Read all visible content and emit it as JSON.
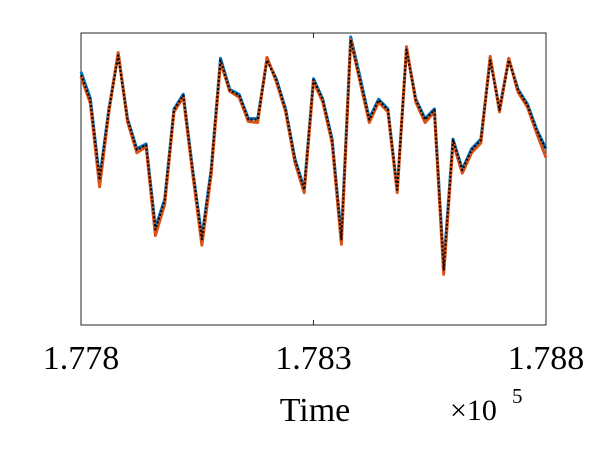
{
  "chart_data": {
    "type": "line",
    "x_label": "Time",
    "x_multiplier": "×10",
    "x_exponent": "5",
    "x": [
      177800,
      177820,
      177840,
      177860,
      177880,
      177900,
      177920,
      177940,
      177960,
      177980,
      178000,
      178020,
      178040,
      178060,
      178080,
      178100,
      178120,
      178140,
      178160,
      178180,
      178200,
      178220,
      178240,
      178260,
      178280,
      178300,
      178320,
      178340,
      178360,
      178380,
      178400,
      178420,
      178440,
      178460,
      178480,
      178500,
      178520,
      178540,
      178560,
      178580,
      178600,
      178620,
      178640,
      178660,
      178680,
      178700,
      178720,
      178740,
      178760,
      178780,
      178800
    ],
    "series": [
      {
        "color": "#0072bd",
        "style": "solid",
        "values": [
          1.1,
          0.83,
          0.0,
          0.72,
          1.29,
          0.62,
          0.31,
          0.36,
          -0.5,
          -0.21,
          0.72,
          0.87,
          0.1,
          -0.6,
          0.1,
          1.24,
          0.92,
          0.87,
          0.62,
          0.62,
          1.23,
          1.03,
          0.72,
          0.21,
          -0.1,
          1.03,
          0.82,
          0.41,
          -0.6,
          1.46,
          1.05,
          0.62,
          0.82,
          0.72,
          -0.12,
          1.34,
          0.82,
          0.62,
          0.72,
          -0.9,
          0.41,
          0.1,
          0.31,
          0.41,
          1.24,
          0.72,
          1.23,
          0.92,
          0.77,
          0.51,
          0.31
        ]
      },
      {
        "color": "#d95319",
        "style": "solid",
        "values": [
          1.05,
          0.78,
          -0.08,
          0.69,
          1.3,
          0.59,
          0.27,
          0.33,
          -0.58,
          -0.26,
          0.69,
          0.84,
          0.06,
          -0.68,
          0.05,
          1.2,
          0.9,
          0.84,
          0.59,
          0.58,
          1.25,
          1.0,
          0.69,
          0.17,
          -0.14,
          1.0,
          0.79,
          0.37,
          -0.67,
          1.43,
          1.0,
          0.58,
          0.79,
          0.69,
          -0.14,
          1.36,
          0.79,
          0.58,
          0.69,
          -0.98,
          0.37,
          0.06,
          0.27,
          0.37,
          1.26,
          0.69,
          1.24,
          0.89,
          0.74,
          0.47,
          0.22
        ]
      },
      {
        "color": "#000000",
        "style": "dotted",
        "values": [
          1.07,
          0.81,
          -0.01,
          0.71,
          1.27,
          0.61,
          0.3,
          0.35,
          -0.52,
          -0.22,
          0.71,
          0.86,
          0.09,
          -0.62,
          0.09,
          1.22,
          0.91,
          0.86,
          0.61,
          0.61,
          1.22,
          1.02,
          0.71,
          0.2,
          -0.11,
          1.02,
          0.81,
          0.4,
          -0.62,
          1.43,
          1.02,
          0.61,
          0.81,
          0.71,
          -0.11,
          1.33,
          0.81,
          0.61,
          0.71,
          -0.93,
          0.4,
          0.09,
          0.3,
          0.4,
          1.22,
          0.71,
          1.22,
          0.91,
          0.76,
          0.5,
          0.3
        ]
      }
    ],
    "xlim": [
      177800,
      178800
    ],
    "xticks": [
      {
        "value": 177800,
        "label": "1.778"
      },
      {
        "value": 178300,
        "label": "1.783"
      },
      {
        "value": 178800,
        "label": "1.788"
      }
    ],
    "ylim": [
      -1.5,
      1.5
    ]
  }
}
